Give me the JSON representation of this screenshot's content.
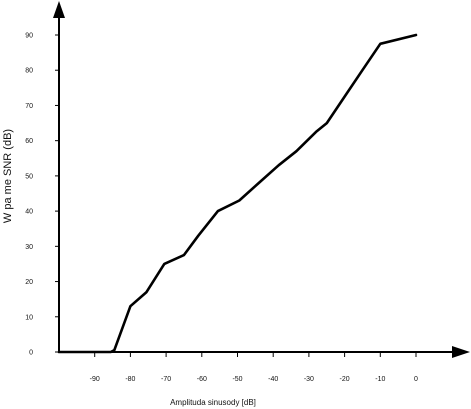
{
  "chart_data": {
    "type": "line",
    "title": "",
    "xlabel": "Amplituda sinusody [dB]",
    "ylabel": "W pa me SNR (dB)",
    "xlim": [
      -100,
      0
    ],
    "ylim": [
      0,
      90
    ],
    "x_ticks": [
      -90,
      -80,
      -70,
      -60,
      -50,
      -40,
      -30,
      -20,
      -10,
      0
    ],
    "y_ticks": [
      0,
      10,
      20,
      30,
      40,
      50,
      60,
      70,
      80,
      90
    ],
    "grid": false,
    "series": [
      {
        "x": [
          -100,
          -85.5,
          -84.5,
          -80,
          -75.5,
          -70.5,
          -65,
          -61,
          -55.5,
          -49.5,
          -44,
          -38.5,
          -33.5,
          -28,
          -25,
          -20,
          -15,
          -10,
          0
        ],
        "y": [
          0,
          0,
          0.5,
          13,
          17,
          25,
          27.5,
          33,
          40,
          43,
          48,
          53,
          57,
          62.5,
          65,
          72.5,
          80,
          87.5,
          90
        ]
      }
    ]
  }
}
